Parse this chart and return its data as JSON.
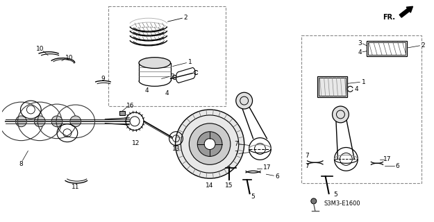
{
  "bg_color": "#ffffff",
  "line_color": "#000000",
  "diagram_code": "S3M3-E1600",
  "fr_label": "FR.",
  "figsize": [
    6.25,
    3.2
  ],
  "dpi": 100,
  "gray": "#888888",
  "dgray": "#444444"
}
